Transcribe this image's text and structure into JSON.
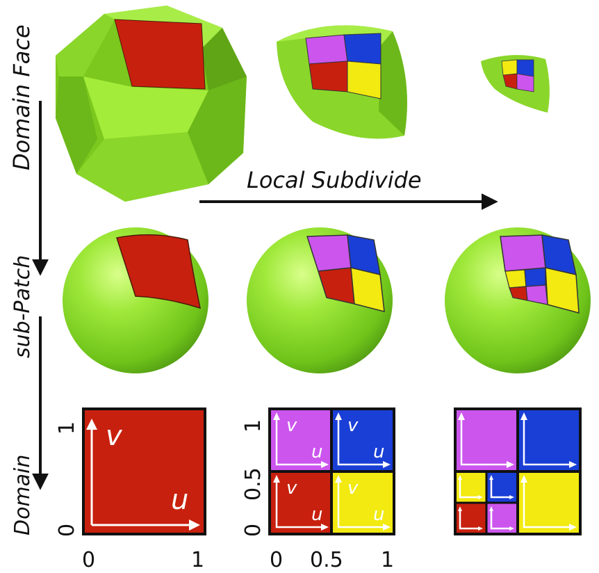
{
  "labels": {
    "domain_face": "Domain Face",
    "sub_patch": "sub-Patch",
    "domain": "Domain",
    "local_subdivide": "Local Subdivide"
  },
  "axes": {
    "u": "u",
    "v": "v",
    "col1_x_ticks": [
      "0",
      "1"
    ],
    "col1_y_ticks": [
      "0",
      "1"
    ],
    "col2_x_ticks": [
      "0",
      "0.5",
      "1"
    ],
    "col2_y_ticks": [
      "0",
      "0.5",
      "1"
    ]
  },
  "colors": {
    "green_light": "#9be334",
    "green_mid": "#7fc820",
    "green_dark": "#5e9e18",
    "red": "#c8200e",
    "magenta": "#cc55ee",
    "blue": "#1a3fd6",
    "yellow": "#f2ea10"
  }
}
